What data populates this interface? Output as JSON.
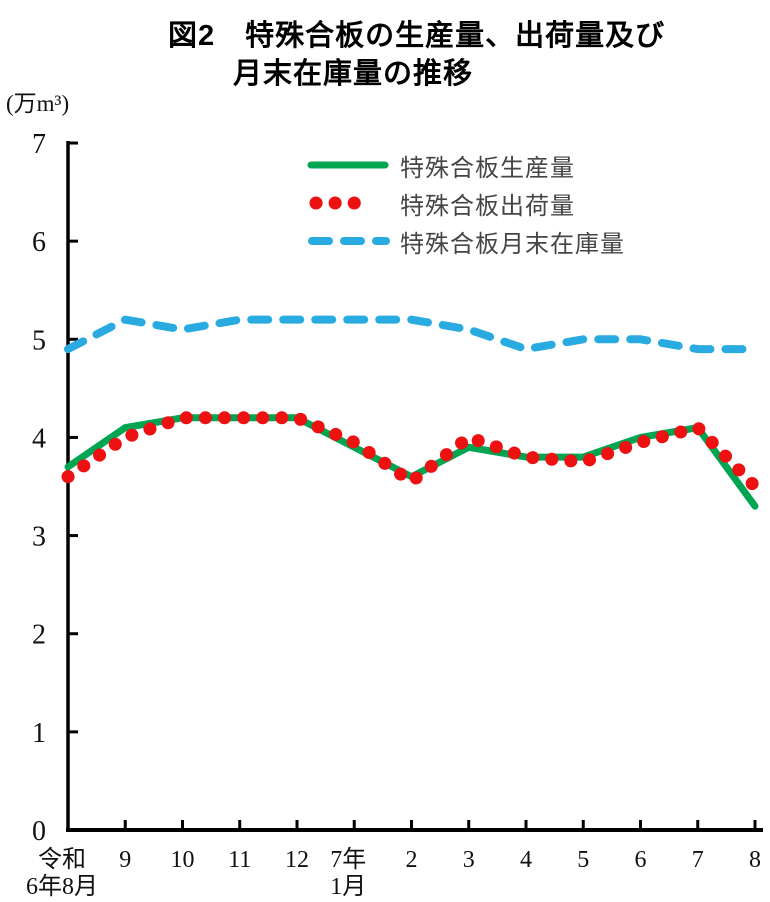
{
  "title": {
    "line1": "図2　特殊合板の生産量、出荷量及び",
    "line2": "月末在庫量の推移"
  },
  "y_axis_unit": "(万m³)",
  "legend": [
    {
      "label": "特殊合板生産量",
      "style": "solid",
      "color": "#00a551"
    },
    {
      "label": "特殊合板出荷量",
      "style": "dotted",
      "color": "#ee1111"
    },
    {
      "label": "特殊合板月末在庫量",
      "style": "dashed",
      "color": "#29abe2"
    }
  ],
  "chart_data": {
    "type": "line",
    "title": "図2 特殊合板の生産量、出荷量及び月末在庫量の推移",
    "ylabel": "(万m³)",
    "xlabel": "",
    "ylim": [
      0,
      7
    ],
    "y_ticks": [
      0,
      1,
      2,
      3,
      4,
      5,
      6,
      7
    ],
    "grid": false,
    "legend_position": "top-center-inside",
    "categories": [
      "令和6年8月",
      "9",
      "10",
      "11",
      "12",
      "7年1月",
      "2",
      "3",
      "4",
      "5",
      "6",
      "7",
      "8"
    ],
    "x_tick_labels": [
      [
        "令和",
        "6年8月"
      ],
      [
        "9"
      ],
      [
        "10"
      ],
      [
        "11"
      ],
      [
        "12"
      ],
      [
        "7年",
        "1月"
      ],
      [
        "2"
      ],
      [
        "3"
      ],
      [
        "4"
      ],
      [
        "5"
      ],
      [
        "6"
      ],
      [
        "7"
      ],
      [
        "8"
      ]
    ],
    "series": [
      {
        "name": "特殊合板生産量",
        "style": "solid",
        "color": "#00a551",
        "values": [
          3.7,
          4.1,
          4.2,
          4.2,
          4.2,
          3.9,
          3.6,
          3.9,
          3.8,
          3.8,
          4.0,
          4.1,
          3.3
        ]
      },
      {
        "name": "特殊合板出荷量",
        "style": "dotted",
        "color": "#ee1111",
        "values": [
          3.6,
          4.0,
          4.2,
          4.2,
          4.2,
          3.95,
          3.55,
          4.0,
          3.8,
          3.75,
          3.95,
          4.1,
          3.5
        ]
      },
      {
        "name": "特殊合板月末在庫量",
        "style": "dashed",
        "color": "#29abe2",
        "values": [
          4.9,
          5.2,
          5.1,
          5.2,
          5.2,
          5.2,
          5.2,
          5.1,
          4.9,
          5.0,
          5.0,
          4.9,
          4.9
        ]
      }
    ]
  }
}
